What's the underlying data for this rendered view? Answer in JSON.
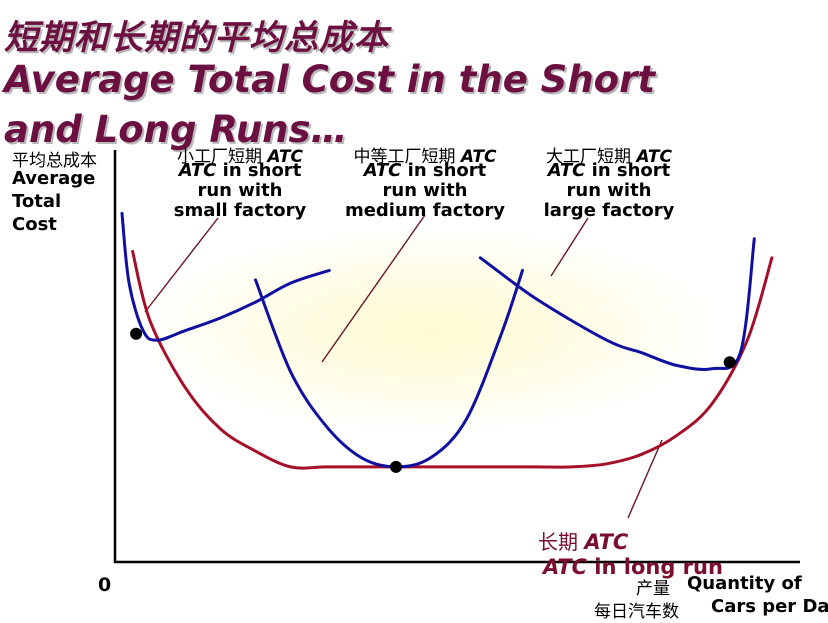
{
  "title": {
    "chinese": "短期和长期的平均总成本",
    "english_line1": "Average Total Cost in the Short",
    "english_line2": "and Long Runs…"
  },
  "axes": {
    "ylabel_cn": "平均总成本",
    "ylabel_en": [
      "Average",
      "Total",
      "Cost"
    ],
    "origin": "0",
    "xlabel_cn_1": "产量",
    "xlabel_en_1": "Quantity of",
    "xlabel_cn_2": "每日汽车数",
    "xlabel_en_2": "Cars per Day"
  },
  "annotations": {
    "small": {
      "cn": "小工厂短期",
      "atc": "ATC",
      "line1_atc": "ATC",
      "line1_rest": " in short",
      "line2": "run with",
      "line3": "small factory"
    },
    "medium": {
      "cn": "中等工厂短期",
      "atc": "ATC",
      "line1_atc": "ATC",
      "line1_rest": " in short",
      "line2": "run with",
      "line3": "medium factory"
    },
    "large": {
      "cn": "大工厂短期",
      "atc": "ATC",
      "line1_atc": "ATC",
      "line1_rest": " in short",
      "line2": "run with",
      "line3": "large factory"
    },
    "long_run": {
      "cn": "长期",
      "atc": "ATC",
      "line1_atc": "ATC",
      "line1_rest": " in long run"
    }
  },
  "colors": {
    "long_run_curve": "#a3102a",
    "short_run_curves": "#1010a0",
    "title": "#6b1040",
    "points": "#000000"
  },
  "chart_data": {
    "type": "line",
    "title": "Average Total Cost in the Short and Long Runs…",
    "xlabel": "Quantity of Cars per Day",
    "ylabel": "Average Total Cost",
    "axis_numbers_shown": false,
    "series": [
      {
        "name": "ATC in long run",
        "color": "#a3102a",
        "x": [
          0.5,
          1,
          2,
          3,
          4,
          5,
          6,
          7,
          8,
          9,
          10,
          11,
          12,
          13,
          14,
          15,
          16,
          17,
          18,
          18.7
        ],
        "y": [
          9.8,
          7.6,
          5.5,
          4.2,
          3.5,
          3.0,
          3.0,
          3.0,
          3.0,
          3.0,
          3.0,
          3.0,
          3.0,
          3.0,
          3.1,
          3.4,
          4.0,
          5.0,
          7.0,
          9.6
        ]
      },
      {
        "name": "ATC in short run with small factory",
        "color": "#1010a0",
        "x": [
          0.2,
          0.4,
          0.8,
          1.2,
          2,
          3,
          4,
          5,
          6.1
        ],
        "y": [
          11.0,
          8.8,
          7.3,
          7.0,
          7.3,
          7.7,
          8.2,
          8.8,
          9.2
        ]
      },
      {
        "name": "ATC in short run with medium factory",
        "color": "#1010a0",
        "x": [
          4,
          5,
          6,
          7,
          8,
          9,
          10,
          11,
          11.6
        ],
        "y": [
          8.9,
          6.0,
          4.3,
          3.3,
          3.0,
          3.3,
          4.5,
          7.2,
          9.2
        ]
      },
      {
        "name": "ATC in short run with large factory",
        "color": "#1010a0",
        "x": [
          10.4,
          12,
          14,
          15,
          16,
          17,
          17.8,
          18.2
        ],
        "y": [
          9.6,
          8.3,
          7.0,
          6.6,
          6.2,
          6.1,
          6.6,
          10.2
        ]
      }
    ],
    "points": [
      {
        "x": 0.6,
        "y": 7.2
      },
      {
        "x": 8,
        "y": 3.0
      },
      {
        "x": 17.5,
        "y": 6.3
      }
    ],
    "xlim": [
      0,
      19.5
    ],
    "ylim": [
      0,
      13
    ]
  }
}
